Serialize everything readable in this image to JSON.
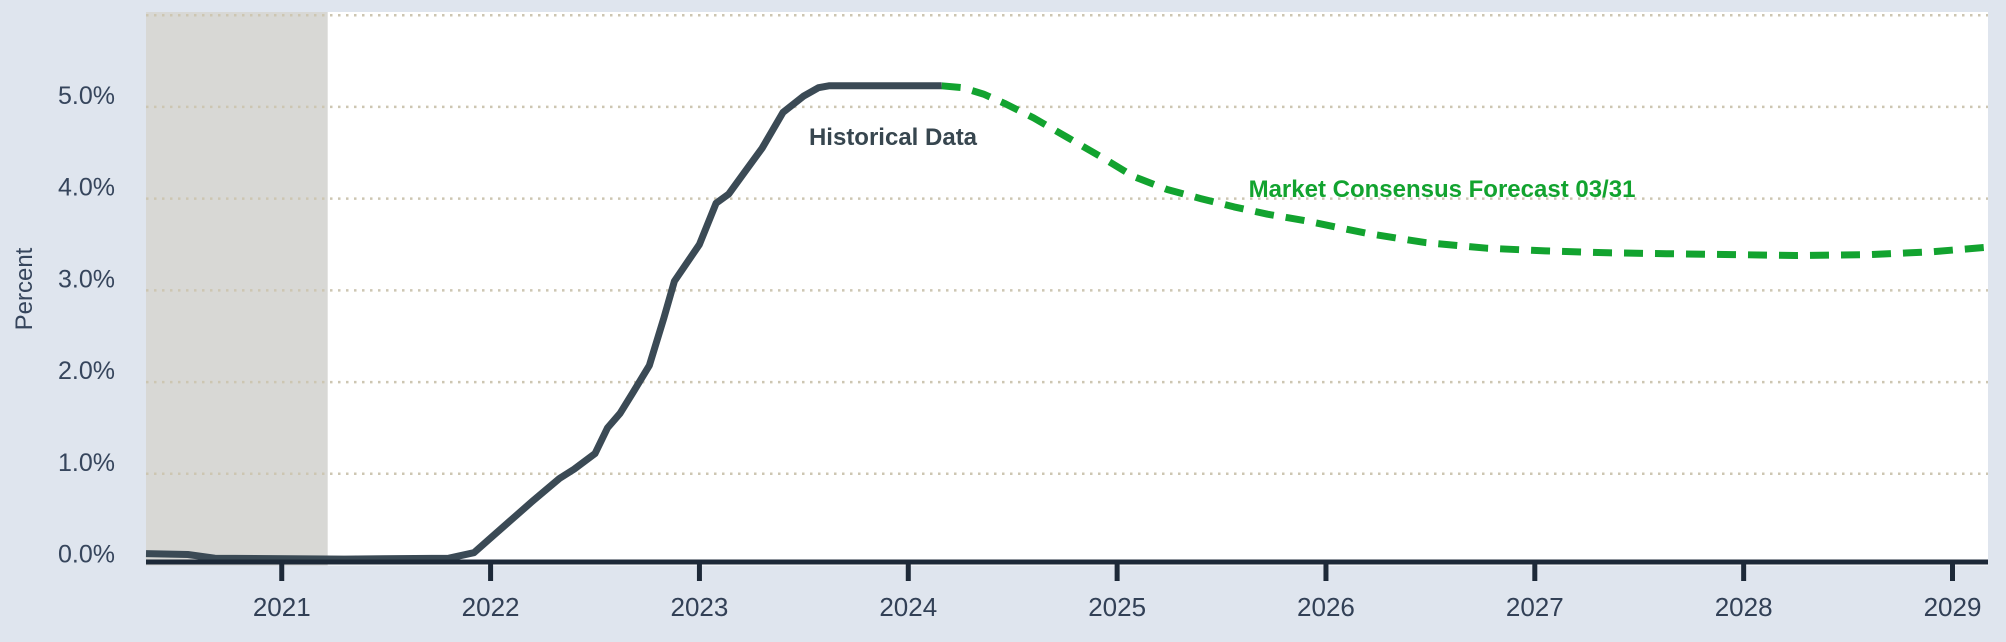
{
  "chart_data": {
    "type": "line",
    "title": "",
    "xlabel": "",
    "ylabel": "Percent",
    "grid": "dotted-horizontal",
    "legend_position": "inline-annotations",
    "x_axis": {
      "range": [
        2020.35,
        2029.17
      ],
      "tick_years": [
        2021,
        2022,
        2023,
        2024,
        2025,
        2026,
        2027,
        2028,
        2029
      ]
    },
    "y_axis": {
      "range": [
        0,
        6.035
      ],
      "tick_values": [
        0,
        1,
        2,
        3,
        4,
        5
      ],
      "tick_labels": [
        "0.0%",
        "1.0%",
        "2.0%",
        "3.0%",
        "4.0%",
        "5.0%"
      ],
      "gridline_values": [
        1,
        2,
        3,
        4,
        5,
        6
      ]
    },
    "recession_band": {
      "x_start": 2020.35,
      "x_end": 2021.22,
      "color": "#d8d8d5"
    },
    "series": [
      {
        "name": "Historical Data",
        "style": "solid",
        "color": "#3b4a55",
        "points": [
          [
            2020.35,
            0.13
          ],
          [
            2020.55,
            0.12
          ],
          [
            2020.68,
            0.08
          ],
          [
            2021.3,
            0.07
          ],
          [
            2021.8,
            0.08
          ],
          [
            2021.92,
            0.14
          ],
          [
            2022.0,
            0.3
          ],
          [
            2022.1,
            0.5
          ],
          [
            2022.2,
            0.7
          ],
          [
            2022.33,
            0.95
          ],
          [
            2022.4,
            1.05
          ],
          [
            2022.5,
            1.22
          ],
          [
            2022.56,
            1.5
          ],
          [
            2022.62,
            1.66
          ],
          [
            2022.68,
            1.88
          ],
          [
            2022.76,
            2.18
          ],
          [
            2022.83,
            2.7
          ],
          [
            2022.88,
            3.1
          ],
          [
            2023.0,
            3.5
          ],
          [
            2023.08,
            3.95
          ],
          [
            2023.14,
            4.05
          ],
          [
            2023.22,
            4.3
          ],
          [
            2023.3,
            4.55
          ],
          [
            2023.4,
            4.94
          ],
          [
            2023.5,
            5.12
          ],
          [
            2023.57,
            5.21
          ],
          [
            2023.62,
            5.23
          ],
          [
            2024.16,
            5.23
          ]
        ]
      },
      {
        "name": "Market Consensus Forecast 03/31",
        "style": "dashed",
        "color": "#12a32f",
        "points": [
          [
            2024.16,
            5.23
          ],
          [
            2024.26,
            5.21
          ],
          [
            2024.36,
            5.14
          ],
          [
            2024.46,
            5.04
          ],
          [
            2024.6,
            4.88
          ],
          [
            2024.76,
            4.67
          ],
          [
            2024.92,
            4.46
          ],
          [
            2025.08,
            4.24
          ],
          [
            2025.24,
            4.1
          ],
          [
            2025.4,
            4.0
          ],
          [
            2025.56,
            3.91
          ],
          [
            2025.72,
            3.83
          ],
          [
            2025.9,
            3.76
          ],
          [
            2026.05,
            3.69
          ],
          [
            2026.2,
            3.62
          ],
          [
            2026.48,
            3.52
          ],
          [
            2026.77,
            3.46
          ],
          [
            2027.05,
            3.43
          ],
          [
            2027.35,
            3.41
          ],
          [
            2027.63,
            3.4
          ],
          [
            2027.95,
            3.39
          ],
          [
            2028.25,
            3.38
          ],
          [
            2028.6,
            3.39
          ],
          [
            2028.9,
            3.42
          ],
          [
            2029.17,
            3.47
          ]
        ]
      }
    ],
    "colors": {
      "page_background": "#dfe5ee",
      "plot_background": "#ffffff",
      "gridline": "#cdc6b2",
      "axis": "#1d2938",
      "tick_label": "#324056",
      "historical_line": "#3b4a55",
      "forecast_line": "#12a32f"
    }
  }
}
